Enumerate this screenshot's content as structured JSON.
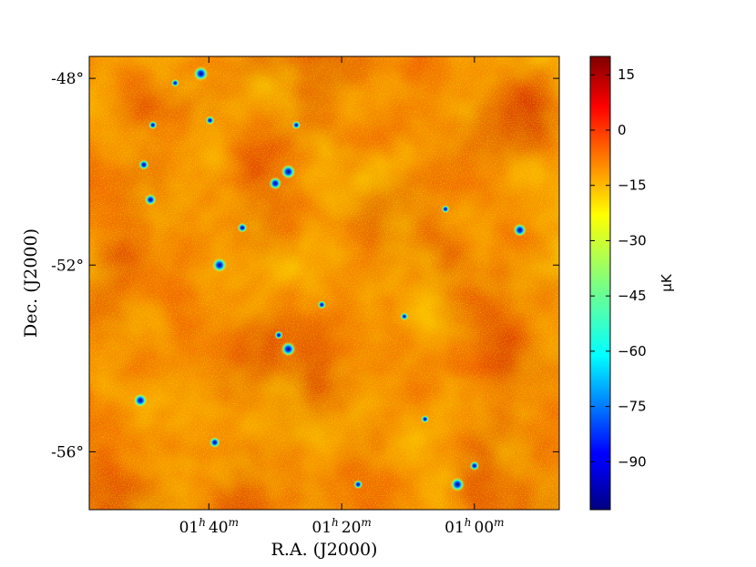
{
  "chart_data": {
    "type": "heatmap",
    "title": "",
    "xlabel": "R.A. (J2000)",
    "ylabel": "Dec. (J2000)",
    "x_ticks": [
      {
        "ra_hours": 1.6667,
        "label_h": "01",
        "label_m": "40"
      },
      {
        "ra_hours": 1.3333,
        "label_h": "01",
        "label_m": "20"
      },
      {
        "ra_hours": 1.0,
        "label_h": "01",
        "label_m": "00"
      }
    ],
    "xlim_hours": [
      1.967,
      0.787
    ],
    "y_ticks": [
      {
        "dec": -48,
        "label": "-48°"
      },
      {
        "dec": -52,
        "label": "-52°"
      },
      {
        "dec": -56,
        "label": "-56°"
      }
    ],
    "ylim": [
      -57.24,
      -47.53
    ],
    "colorbar": {
      "label": "μK",
      "range": [
        -103,
        20
      ],
      "ticks": [
        15,
        0,
        -15,
        -30,
        -45,
        -60,
        -75,
        -90
      ],
      "colormap": "jet"
    },
    "point_sources": [
      {
        "ra_hours": 1.6867,
        "dec": -47.9,
        "uk": -100
      },
      {
        "ra_hours": 1.4673,
        "dec": -50.0,
        "uk": -100
      },
      {
        "ra_hours": 1.5,
        "dec": -50.25,
        "uk": -80
      },
      {
        "ra_hours": 1.8133,
        "dec": -50.6,
        "uk": -70
      },
      {
        "ra_hours": 0.886,
        "dec": -51.25,
        "uk": -85
      },
      {
        "ra_hours": 1.64,
        "dec": -52.0,
        "uk": -100
      },
      {
        "ra_hours": 1.5827,
        "dec": -51.2,
        "uk": -50
      },
      {
        "ra_hours": 1.4673,
        "dec": -53.8,
        "uk": -100
      },
      {
        "ra_hours": 1.8387,
        "dec": -54.9,
        "uk": -90
      },
      {
        "ra_hours": 1.652,
        "dec": -55.8,
        "uk": -60
      },
      {
        "ra_hours": 1.0427,
        "dec": -56.7,
        "uk": -95
      },
      {
        "ra_hours": 1.292,
        "dec": -56.7,
        "uk": -40
      },
      {
        "ra_hours": 1.4473,
        "dec": -49.0,
        "uk": -35
      },
      {
        "ra_hours": 1.176,
        "dec": -53.1,
        "uk": -30
      },
      {
        "ra_hours": 1.4913,
        "dec": -53.5,
        "uk": -35
      },
      {
        "ra_hours": 1.7513,
        "dec": -48.1,
        "uk": -30
      },
      {
        "ra_hours": 1.8073,
        "dec": -49.0,
        "uk": -35
      },
      {
        "ra_hours": 1.83,
        "dec": -49.85,
        "uk": -55
      },
      {
        "ra_hours": 1.664,
        "dec": -48.9,
        "uk": -40
      },
      {
        "ra_hours": 1.0,
        "dec": -56.3,
        "uk": -45
      },
      {
        "ra_hours": 1.3833,
        "dec": -52.85,
        "uk": -35
      },
      {
        "ra_hours": 1.124,
        "dec": -55.3,
        "uk": -30
      },
      {
        "ra_hours": 1.0727,
        "dec": -50.8,
        "uk": -30
      }
    ]
  }
}
